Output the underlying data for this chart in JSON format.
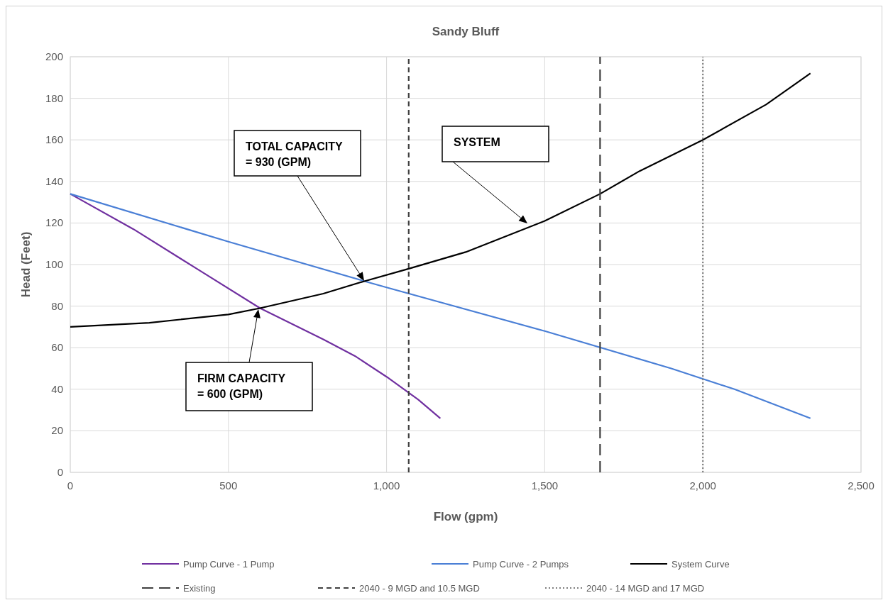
{
  "chart_data": {
    "type": "line",
    "title": "Sandy Bluff",
    "xlabel": "Flow (gpm)",
    "ylabel": "Head (Feet)",
    "xlim": [
      0,
      2500
    ],
    "xticks": [
      {
        "value": 0,
        "label": "0"
      },
      {
        "value": 500,
        "label": "500"
      },
      {
        "value": 1000,
        "label": "1,000"
      },
      {
        "value": 1500,
        "label": "1,500"
      },
      {
        "value": 2000,
        "label": "2,000"
      },
      {
        "value": 2500,
        "label": "2,500"
      }
    ],
    "ylim": [
      0,
      200
    ],
    "yticks": [
      0,
      20,
      40,
      60,
      80,
      100,
      120,
      140,
      160,
      180,
      200
    ],
    "grid": true,
    "legend": "bottom",
    "marker": "none",
    "series": [
      {
        "name": "Pump Curve - 1 Pump",
        "color": "#7030a0",
        "line_style": "solid",
        "x": [
          0,
          200,
          400,
          600,
          800,
          900,
          1000,
          1100,
          1170
        ],
        "values": [
          134,
          117,
          98,
          79,
          64,
          56,
          46,
          35,
          26
        ]
      },
      {
        "name": "Pump Curve - 2 Pumps",
        "color": "#4a7fd6",
        "line_style": "solid",
        "x": [
          0,
          500,
          930,
          1000,
          1500,
          1900,
          2100,
          2340
        ],
        "values": [
          134,
          111,
          92,
          89,
          68,
          50,
          40,
          26
        ]
      },
      {
        "name": "System Curve",
        "color": "#000000",
        "line_style": "solid",
        "x": [
          0,
          250,
          500,
          600,
          800,
          930,
          1070,
          1250,
          1500,
          1675,
          1800,
          2000,
          2200,
          2340
        ],
        "values": [
          70,
          72,
          76,
          79,
          86,
          92,
          98,
          106,
          121,
          134,
          145,
          160,
          177,
          192
        ]
      },
      {
        "name": "Existing",
        "color": "#404040",
        "line_style": "longdash",
        "x": [
          1675,
          1675
        ],
        "values": [
          0,
          200
        ]
      },
      {
        "name": "2040 - 9 MGD and 10.5 MGD",
        "color": "#404040",
        "line_style": "dashed",
        "x": [
          1070,
          1070
        ],
        "values": [
          0,
          200
        ]
      },
      {
        "name": "2040 - 14 MGD and 17 MGD",
        "color": "#808080",
        "line_style": "dotted",
        "x": [
          2000,
          2000
        ],
        "values": [
          0,
          200
        ]
      }
    ],
    "annotations": [
      "TOTAL CAPACITY\n= 930 (GPM)",
      "SYSTEM",
      "FIRM CAPACITY\n= 600 (GPM)"
    ]
  }
}
